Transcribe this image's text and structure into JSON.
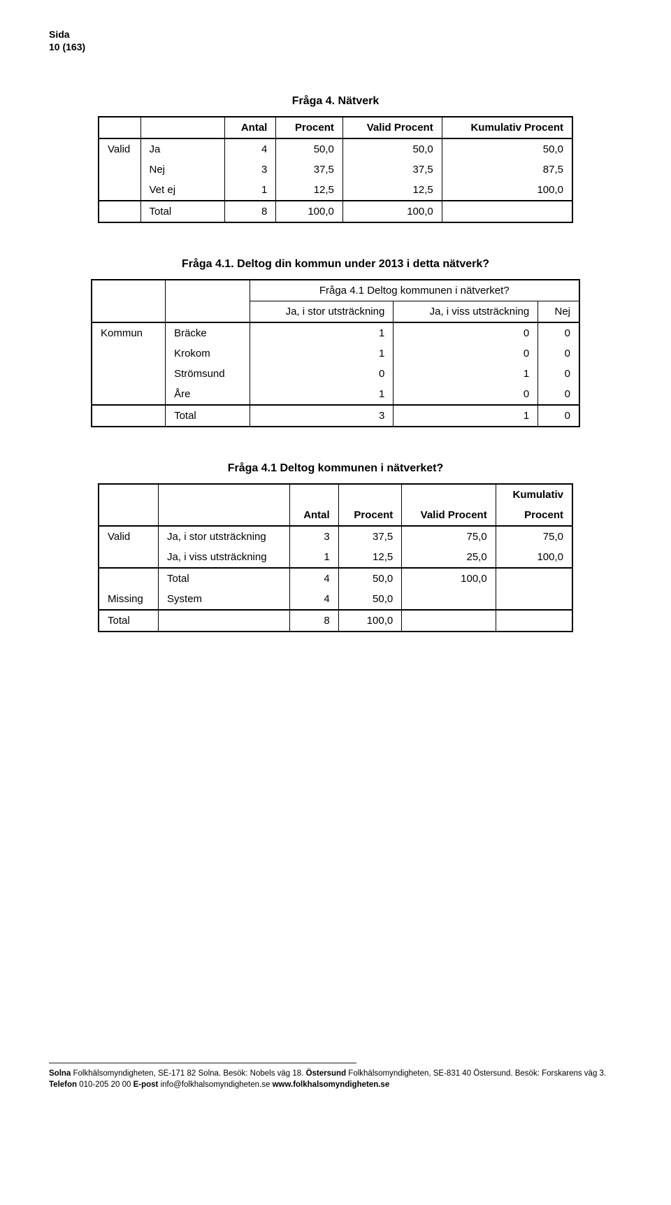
{
  "header": {
    "line1": "Sida",
    "line2": "10 (163)"
  },
  "table1": {
    "title": "Fråga 4. Nätverk",
    "columns": [
      "",
      "",
      "Antal",
      "Procent",
      "Valid Procent",
      "Kumulativ Procent"
    ],
    "rows": [
      [
        "Valid",
        "Ja",
        "4",
        "50,0",
        "50,0",
        "50,0"
      ],
      [
        "",
        "Nej",
        "3",
        "37,5",
        "37,5",
        "87,5"
      ],
      [
        "",
        "Vet ej",
        "1",
        "12,5",
        "12,5",
        "100,0"
      ],
      [
        "",
        "Total",
        "8",
        "100,0",
        "100,0",
        ""
      ]
    ]
  },
  "table2": {
    "title": "Fråga 4.1. Deltog din kommun under 2013 i detta nätverk?",
    "toplabel": "Fråga 4.1 Deltog kommunen i nätverket?",
    "columns": [
      "",
      "",
      "Ja, i stor utsträckning",
      "Ja, i viss utsträckning",
      "Nej"
    ],
    "rows": [
      [
        "Kommun",
        "Bräcke",
        "1",
        "0",
        "0"
      ],
      [
        "",
        "Krokom",
        "1",
        "0",
        "0"
      ],
      [
        "",
        "Strömsund",
        "0",
        "1",
        "0"
      ],
      [
        "",
        "Åre",
        "1",
        "0",
        "0"
      ],
      [
        "",
        "Total",
        "3",
        "1",
        "0"
      ]
    ]
  },
  "table3": {
    "title": "Fråga 4.1 Deltog kommunen i nätverket?",
    "column_top": "Kumulativ",
    "columns": [
      "",
      "",
      "Antal",
      "Procent",
      "Valid Procent",
      "Procent"
    ],
    "rows": [
      [
        "Valid",
        "Ja, i stor utsträckning",
        "3",
        "37,5",
        "75,0",
        "75,0"
      ],
      [
        "",
        "Ja, i viss utsträckning",
        "1",
        "12,5",
        "25,0",
        "100,0"
      ],
      [
        "",
        "Total",
        "4",
        "50,0",
        "100,0",
        ""
      ],
      [
        "Missing",
        "System",
        "4",
        "50,0",
        "",
        ""
      ],
      [
        "Total",
        "",
        "8",
        "100,0",
        "",
        ""
      ]
    ]
  },
  "footer": {
    "line1a": "Solna ",
    "line1b": "Folkhälsomyndigheten, SE-171 82 Solna. Besök: Nobels väg 18. ",
    "line1c": "Östersund ",
    "line1d": "Folkhälsomyndigheten, SE-831 40 Östersund. Besök: Forskarens väg 3.",
    "line2a": "Telefon ",
    "line2b": "010-205 20 00 ",
    "line2c": "E-post ",
    "line2d": "info@folkhalsomyndigheten.se ",
    "line2e": "www.folkhalsomyndigheten.se"
  }
}
